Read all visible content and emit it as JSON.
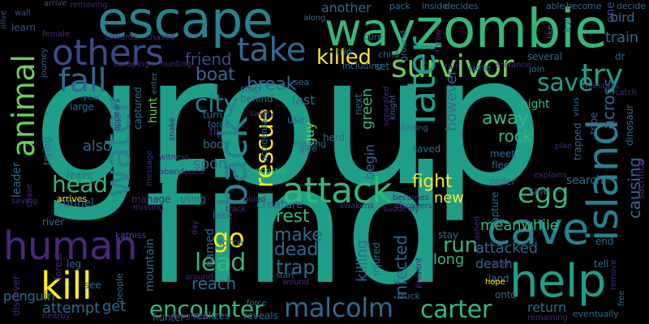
{
  "background_color": "#000000",
  "palette": [
    "#440154",
    "#482878",
    "#3e4989",
    "#31688e",
    "#26828e",
    "#1f9e89",
    "#35b779",
    "#6ece58",
    "#b5de2b",
    "#fde725"
  ],
  "words": [
    {
      "text": "group",
      "color": "#1f9e89",
      "vertical": false
    },
    {
      "text": "find",
      "color": "#1f9e89",
      "vertical": false
    },
    {
      "text": "zombie",
      "color": "#35b779",
      "vertical": false
    },
    {
      "text": "escape",
      "color": "#26828e",
      "vertical": false
    },
    {
      "text": "way",
      "color": "#35b779",
      "vertical": false
    },
    {
      "text": "others",
      "color": "#3e4989",
      "vertical": false
    },
    {
      "text": "take",
      "color": "#31688e",
      "vertical": false
    },
    {
      "text": "fall",
      "color": "#31688e",
      "vertical": false
    },
    {
      "text": "animal",
      "color": "#6ece58",
      "vertical": true
    },
    {
      "text": "water",
      "color": "#26828e",
      "vertical": true
    },
    {
      "text": "survivor",
      "color": "#6ece58",
      "vertical": false
    },
    {
      "text": "later",
      "color": "#1f9e89",
      "vertical": true
    },
    {
      "text": "try",
      "color": "#1f9e89",
      "vertical": false
    },
    {
      "text": "save",
      "color": "#1f9e89",
      "vertical": false
    },
    {
      "text": "killed",
      "color": "#fde725",
      "vertical": false
    },
    {
      "text": "friend",
      "color": "#3e4989",
      "vertical": false
    },
    {
      "text": "boat",
      "color": "#31688e",
      "vertical": false
    },
    {
      "text": "break",
      "color": "#31688e",
      "vertical": false
    },
    {
      "text": "city",
      "color": "#26828e",
      "vertical": false
    },
    {
      "text": "back",
      "color": "#26828e",
      "vertical": true
    },
    {
      "text": "rescue",
      "color": "#fde725",
      "vertical": true
    },
    {
      "text": "attack",
      "color": "#35b779",
      "vertical": false
    },
    {
      "text": "island",
      "color": "#26828e",
      "vertical": true
    },
    {
      "text": "human",
      "color": "#482878",
      "vertical": false
    },
    {
      "text": "head",
      "color": "#35b779",
      "vertical": false
    },
    {
      "text": "kill",
      "color": "#fde725",
      "vertical": false
    },
    {
      "text": "go",
      "color": "#fde725",
      "vertical": false
    },
    {
      "text": "lead",
      "color": "#35b779",
      "vertical": false
    },
    {
      "text": "cave",
      "color": "#26828e",
      "vertical": false
    },
    {
      "text": "help",
      "color": "#1f9e89",
      "vertical": false
    },
    {
      "text": "egg",
      "color": "#35b779",
      "vertical": false
    },
    {
      "text": "encounter",
      "color": "#35b779",
      "vertical": false
    },
    {
      "text": "malcolm",
      "color": "#31688e",
      "vertical": false
    },
    {
      "text": "carter",
      "color": "#35b779",
      "vertical": false
    },
    {
      "text": "fight",
      "color": "#fde725",
      "vertical": false
    },
    {
      "text": "new",
      "color": "#fde725",
      "vertical": false
    },
    {
      "text": "rest",
      "color": "#35b779",
      "vertical": false
    },
    {
      "text": "make",
      "color": "#31688e",
      "vertical": false
    },
    {
      "text": "dead",
      "color": "#31688e",
      "vertical": false
    },
    {
      "text": "trap",
      "color": "#31688e",
      "vertical": false
    },
    {
      "text": "run",
      "color": "#35b779",
      "vertical": false
    },
    {
      "text": "long",
      "color": "#35b779",
      "vertical": false
    },
    {
      "text": "attacked",
      "color": "#31688e",
      "vertical": false
    },
    {
      "text": "meanwhile",
      "color": "#35b779",
      "vertical": false
    },
    {
      "text": "rock",
      "color": "#35b779",
      "vertical": false
    },
    {
      "text": "away",
      "color": "#35b779",
      "vertical": false
    },
    {
      "text": "night",
      "color": "#35b779",
      "vertical": false
    },
    {
      "text": "however",
      "color": "#31688e",
      "vertical": true
    },
    {
      "text": "begin",
      "color": "#31688e",
      "vertical": true
    },
    {
      "text": "green",
      "color": "#35b779",
      "vertical": true
    },
    {
      "text": "infected",
      "color": "#31688e",
      "vertical": true
    },
    {
      "text": "killing",
      "color": "#31688e",
      "vertical": true
    },
    {
      "text": "guy",
      "color": "#6ece58",
      "vertical": true
    },
    {
      "text": "also",
      "color": "#31688e",
      "vertical": false
    },
    {
      "text": "hunt",
      "color": "#6ece58",
      "vertical": true
    },
    {
      "text": "named",
      "color": "#31688e",
      "vertical": true
    },
    {
      "text": "reach",
      "color": "#31688e",
      "vertical": false
    },
    {
      "text": "soon",
      "color": "#31688e",
      "vertical": false
    },
    {
      "text": "body",
      "color": "#31688e",
      "vertical": false
    },
    {
      "text": "attempt",
      "color": "#31688e",
      "vertical": false
    },
    {
      "text": "get",
      "color": "#31688e",
      "vertical": false
    },
    {
      "text": "search",
      "color": "#31688e",
      "vertical": false
    },
    {
      "text": "return",
      "color": "#31688e",
      "vertical": false
    },
    {
      "text": "death",
      "color": "#31688e",
      "vertical": false
    },
    {
      "text": "across",
      "color": "#31688e",
      "vertical": true
    },
    {
      "text": "causing",
      "color": "#31688e",
      "vertical": true
    },
    {
      "text": "train",
      "color": "#31688e",
      "vertical": false
    },
    {
      "text": "mountain",
      "color": "#31688e",
      "vertical": true
    },
    {
      "text": "penguin",
      "color": "#31688e",
      "vertical": false
    },
    {
      "text": "leader",
      "color": "#31688e",
      "vertical": true
    },
    {
      "text": "last",
      "color": "#31688e",
      "vertical": false
    },
    {
      "text": "another",
      "color": "#31688e",
      "vertical": false
    },
    {
      "text": "one",
      "color": "#3e4989",
      "vertical": true
    },
    {
      "text": "bird",
      "color": "#31688e",
      "vertical": false
    },
    {
      "text": "decide",
      "color": "#31688e",
      "vertical": false
    },
    {
      "text": "ground",
      "color": "#31688e",
      "vertical": true
    },
    {
      "text": "fly",
      "color": "#482878",
      "vertical": false
    },
    {
      "text": "force",
      "color": "#31688e",
      "vertical": false
    },
    {
      "text": "lake",
      "color": "#31688e",
      "vertical": false
    },
    {
      "text": "creature",
      "color": "#31688e",
      "vertical": false
    },
    {
      "text": "stop",
      "color": "#31688e",
      "vertical": false
    },
    {
      "text": "turn",
      "color": "#31688e",
      "vertical": false
    },
    {
      "text": "hunter",
      "color": "#31688e",
      "vertical": false
    },
    {
      "text": "reveals",
      "color": "#31688e",
      "vertical": false
    },
    {
      "text": "realizes",
      "color": "#31688e",
      "vertical": false
    },
    {
      "text": "land",
      "color": "#31688e",
      "vertical": false
    },
    {
      "text": "onto",
      "color": "#31688e",
      "vertical": false
    },
    {
      "text": "saved",
      "color": "#31688e",
      "vertical": false
    },
    {
      "text": "tunnel",
      "color": "#31688e",
      "vertical": false
    },
    {
      "text": "river",
      "color": "#31688e",
      "vertical": false
    },
    {
      "text": "forest",
      "color": "#482878",
      "vertical": true
    },
    {
      "text": "discover",
      "color": "#482878",
      "vertical": true
    },
    {
      "text": "leave",
      "color": "#31688e",
      "vertical": false
    },
    {
      "text": "arrives",
      "color": "#fde725",
      "vertical": false
    },
    {
      "text": "manage",
      "color": "#482878",
      "vertical": false
    },
    {
      "text": "missing",
      "color": "#482878",
      "vertical": false
    },
    {
      "text": "using",
      "color": "#31688e",
      "vertical": false
    },
    {
      "text": "blood",
      "color": "#482878",
      "vertical": false
    },
    {
      "text": "track",
      "color": "#482878",
      "vertical": false
    },
    {
      "text": "awakens",
      "color": "#482878",
      "vertical": false
    },
    {
      "text": "discovers",
      "color": "#482878",
      "vertical": false
    },
    {
      "text": "see",
      "color": "#31688e",
      "vertical": false
    },
    {
      "text": "katniss",
      "color": "#3e4989",
      "vertical": false
    },
    {
      "text": "leg",
      "color": "#31688e",
      "vertical": false
    },
    {
      "text": "wall",
      "color": "#3e4989",
      "vertical": false
    },
    {
      "text": "alive",
      "color": "#3e4989",
      "vertical": true
    },
    {
      "text": "learn",
      "color": "#3e4989",
      "vertical": false
    },
    {
      "text": "arrive",
      "color": "#3e4989",
      "vertical": false
    },
    {
      "text": "removing",
      "color": "#482878",
      "vertical": false
    },
    {
      "text": "female",
      "color": "#482878",
      "vertical": false
    },
    {
      "text": "towards",
      "color": "#482878",
      "vertical": false
    },
    {
      "text": "chased",
      "color": "#482878",
      "vertical": false
    },
    {
      "text": "journey",
      "color": "#31688e",
      "vertical": true
    },
    {
      "text": "escaping",
      "color": "#482878",
      "vertical": false
    },
    {
      "text": "hunting",
      "color": "#482878",
      "vertical": false
    },
    {
      "text": "enter",
      "color": "#31688e",
      "vertical": true
    },
    {
      "text": "large",
      "color": "#31688e",
      "vertical": false
    },
    {
      "text": "year",
      "color": "#31688e",
      "vertical": false
    },
    {
      "text": "captured",
      "color": "#31688e",
      "vertical": true
    },
    {
      "text": "appears",
      "color": "#482878",
      "vertical": true
    },
    {
      "text": "trying",
      "color": "#31688e",
      "vertical": true
    },
    {
      "text": "force",
      "color": "#31688e",
      "vertical": false
    },
    {
      "text": "witness",
      "color": "#482878",
      "vertical": false
    },
    {
      "text": "message",
      "color": "#482878",
      "vertical": true
    },
    {
      "text": "abandoned",
      "color": "#482878",
      "vertical": false
    },
    {
      "text": "monster",
      "color": "#35b779",
      "vertical": false
    },
    {
      "text": "snake",
      "color": "#482878",
      "vertical": true
    },
    {
      "text": "behind",
      "color": "#31688e",
      "vertical": false
    },
    {
      "text": "along",
      "color": "#31688e",
      "vertical": false
    },
    {
      "text": "cure",
      "color": "#31688e",
      "vertical": false
    },
    {
      "text": "trio",
      "color": "#31688e",
      "vertical": false
    },
    {
      "text": "sea",
      "color": "#31688e",
      "vertical": false
    },
    {
      "text": "safety",
      "color": "#482878",
      "vertical": false
    },
    {
      "text": "accidentally",
      "color": "#31688e",
      "vertical": true
    },
    {
      "text": "making",
      "color": "#31688e",
      "vertical": false
    },
    {
      "text": "give",
      "color": "#31688e",
      "vertical": false
    },
    {
      "text": "herd",
      "color": "#31688e",
      "vertical": false
    },
    {
      "text": "use",
      "color": "#31688e",
      "vertical": false
    },
    {
      "text": "including",
      "color": "#31688e",
      "vertical": false
    },
    {
      "text": "next",
      "color": "#31688e",
      "vertical": true
    },
    {
      "text": "child",
      "color": "#31688e",
      "vertical": false
    },
    {
      "text": "set",
      "color": "#31688e",
      "vertical": false
    },
    {
      "text": "rain",
      "color": "#482878",
      "vertical": false
    },
    {
      "text": "time",
      "color": "#31688e",
      "vertical": false
    },
    {
      "text": "pack",
      "color": "#31688e",
      "vertical": false
    },
    {
      "text": "inside",
      "color": "#31688e",
      "vertical": false
    },
    {
      "text": "decides",
      "color": "#31688e",
      "vertical": false
    },
    {
      "text": "able",
      "color": "#31688e",
      "vertical": false
    },
    {
      "text": "become",
      "color": "#31688e",
      "vertical": false
    },
    {
      "text": "like",
      "color": "#31688e",
      "vertical": true
    },
    {
      "text": "ice",
      "color": "#31688e",
      "vertical": true
    },
    {
      "text": "throw",
      "color": "#482878",
      "vertical": true
    },
    {
      "text": "entrance",
      "color": "#482878",
      "vertical": false
    },
    {
      "text": "several",
      "color": "#31688e",
      "vertical": false
    },
    {
      "text": "join",
      "color": "#31688e",
      "vertical": false
    },
    {
      "text": "dr",
      "color": "#31688e",
      "vertical": false
    },
    {
      "text": "manages",
      "color": "#482878",
      "vertical": false
    },
    {
      "text": "catch",
      "color": "#482878",
      "vertical": false
    },
    {
      "text": "virus",
      "color": "#31688e",
      "vertical": true
    },
    {
      "text": "tribe",
      "color": "#31688e",
      "vertical": true
    },
    {
      "text": "dinosaur",
      "color": "#31688e",
      "vertical": true
    },
    {
      "text": "trapped",
      "color": "#31688e",
      "vertical": true
    },
    {
      "text": "sacrifice",
      "color": "#482878",
      "vertical": true
    },
    {
      "text": "plan",
      "color": "#482878",
      "vertical": false
    },
    {
      "text": "explains",
      "color": "#482878",
      "vertical": false
    },
    {
      "text": "safe",
      "color": "#31688e",
      "vertical": false
    },
    {
      "text": "meet",
      "color": "#31688e",
      "vertical": false
    },
    {
      "text": "flee",
      "color": "#31688e",
      "vertical": false
    },
    {
      "text": "order",
      "color": "#31688e",
      "vertical": false
    },
    {
      "text": "capture",
      "color": "#31688e",
      "vertical": true
    },
    {
      "text": "end",
      "color": "#31688e",
      "vertical": false
    },
    {
      "text": "tell",
      "color": "#31688e",
      "vertical": false
    },
    {
      "text": "remove",
      "color": "#482878",
      "vertical": true
    },
    {
      "text": "eventually",
      "color": "#31688e",
      "vertical": false
    },
    {
      "text": "free",
      "color": "#31688e",
      "vertical": true
    },
    {
      "text": "remaining",
      "color": "#482878",
      "vertical": false
    },
    {
      "text": "hope",
      "color": "#fde725",
      "vertical": false
    },
    {
      "text": "open",
      "color": "#482878",
      "vertical": false
    },
    {
      "text": "crashed",
      "color": "#482878",
      "vertical": true
    },
    {
      "text": "knight",
      "color": "#31688e",
      "vertical": true
    },
    {
      "text": "separated",
      "color": "#482878",
      "vertical": true
    },
    {
      "text": "finding",
      "color": "#31688e",
      "vertical": false
    },
    {
      "text": "becomes",
      "color": "#482878",
      "vertical": false
    },
    {
      "text": "suddenly",
      "color": "#482878",
      "vertical": false
    },
    {
      "text": "prevent",
      "color": "#482878",
      "vertical": true
    },
    {
      "text": "stay",
      "color": "#31688e",
      "vertical": false
    },
    {
      "text": "injured",
      "color": "#31688e",
      "vertical": true
    },
    {
      "text": "truck",
      "color": "#31688e",
      "vertical": false
    },
    {
      "text": "wound",
      "color": "#482878",
      "vertical": false
    },
    {
      "text": "start",
      "color": "#31688e",
      "vertical": false
    },
    {
      "text": "daughter",
      "color": "#482878",
      "vertical": false
    },
    {
      "text": "around",
      "color": "#482878",
      "vertical": false
    },
    {
      "text": "day",
      "color": "#482878",
      "vertical": true
    },
    {
      "text": "nearby",
      "color": "#482878",
      "vertical": false
    },
    {
      "text": "people",
      "color": "#31688e",
      "vertical": true
    },
    {
      "text": "saving",
      "color": "#482878",
      "vertical": false
    },
    {
      "text": "chase",
      "color": "#482878",
      "vertical": true
    },
    {
      "text": "force",
      "color": "#31688e",
      "vertical": false
    }
  ]
}
